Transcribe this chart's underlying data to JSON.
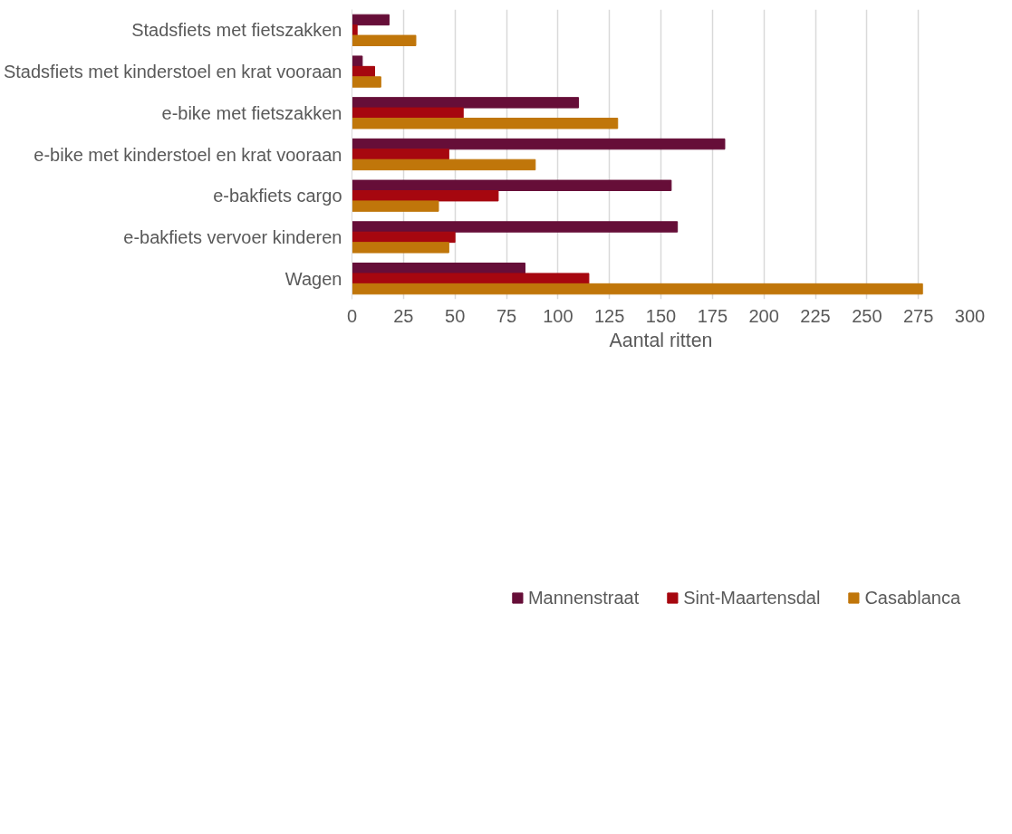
{
  "chart_data": {
    "type": "bar",
    "orientation": "horizontal",
    "xlabel": "Aantal ritten",
    "categories": [
      "Stadsfiets met fietszakken",
      "Stadsfiets met kinderstoel en krat vooraan",
      "e-bike met fietszakken",
      "e-bike met kinderstoel en krat vooraan",
      "e-bakfiets cargo",
      "e-bakfiets vervoer kinderen",
      "Wagen"
    ],
    "series": [
      {
        "name": "Mannenstraat",
        "color": "#660e38",
        "values": [
          18,
          5,
          110,
          181,
          155,
          158,
          84
        ]
      },
      {
        "name": "Sint-Maartensdal",
        "color": "#a6070f",
        "values": [
          2.5,
          11,
          54,
          47,
          71,
          50,
          115
        ]
      },
      {
        "name": "Casablanca",
        "color": "#c0760a",
        "values": [
          31,
          14,
          129,
          89,
          42,
          47,
          277
        ]
      }
    ],
    "xlim": [
      0,
      300
    ],
    "xticks": [
      0,
      25,
      50,
      75,
      100,
      125,
      150,
      175,
      200,
      225,
      250,
      275,
      300
    ],
    "grid": "x",
    "legend": "bottom"
  }
}
